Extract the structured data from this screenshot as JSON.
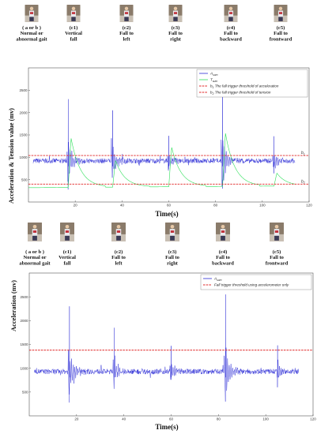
{
  "panel1": {
    "photos": [
      {
        "lines": [
          "( a or b )",
          "Normal or",
          "abnormal gait"
        ]
      },
      {
        "lines": [
          "(c1)",
          "Vertical",
          "fall"
        ]
      },
      {
        "lines": [
          "(c2)",
          "Fall to",
          "left"
        ]
      },
      {
        "lines": [
          "(c3)",
          "Fall to",
          "right"
        ]
      },
      {
        "lines": [
          "(c4)",
          "Fall to",
          "backward"
        ]
      },
      {
        "lines": [
          "(c5)",
          "Fall to",
          "frontward"
        ]
      }
    ]
  },
  "panel2": {
    "photos": [
      {
        "lines": [
          "( a or b )",
          "Normal or",
          "abnormal gait"
        ]
      },
      {
        "lines": [
          "(c1)",
          "Vertical",
          "fall"
        ]
      },
      {
        "lines": [
          "(c2)",
          "Fall to",
          "left"
        ]
      },
      {
        "lines": [
          "(c3)",
          "Fall to",
          "right"
        ]
      },
      {
        "lines": [
          "(c4)",
          "Fall to",
          "backward"
        ]
      },
      {
        "lines": [
          "(c5)",
          "Fall to",
          "frontward"
        ]
      }
    ]
  },
  "colors": {
    "asum": "#2b2bd6",
    "tsum": "#2ee05a",
    "threshold": "#e02424"
  },
  "chart_data": [
    {
      "type": "line",
      "xlabel": "Time(s)",
      "ylabel": "Acceleration & Tension value (mv)",
      "xlim": [
        0,
        120
      ],
      "ylim": [
        0,
        3000
      ],
      "xticks": [
        20,
        40,
        60,
        80,
        100,
        120
      ],
      "yticks": [
        500,
        1000,
        1500,
        2000,
        2500
      ],
      "legend_position": "top-right",
      "series": [
        {
          "name": "A",
          "name_sub": "sum",
          "role": "acceleration",
          "baseline": 920,
          "noise": 55
        },
        {
          "name": "T",
          "name_sub": "sum",
          "role": "tension",
          "baseline": 360
        }
      ],
      "thresholds": [
        {
          "name": "b",
          "name_sub": "1",
          "legend": "The fall trigger threshold of acceleration",
          "value": 1040,
          "label": "b1"
        },
        {
          "name": "b",
          "name_sub": "2",
          "legend": "The fall trigger threshold of tension",
          "value": 400,
          "label": "b2"
        }
      ],
      "events": [
        {
          "t": 17,
          "acc_peak": 2300,
          "acc_min": 280,
          "ten_peak": 1470,
          "label": "Vertical fall"
        },
        {
          "t": 36,
          "acc_peak": 2050,
          "acc_min": 760,
          "ten_peak": 960,
          "label": "Fall to left"
        },
        {
          "t": 60,
          "acc_peak": 1480,
          "acc_min": 740,
          "ten_peak": 1250,
          "label": "Fall to right"
        },
        {
          "t": 83,
          "acc_peak": 2570,
          "acc_min": 300,
          "ten_peak": 1560,
          "label": "Fall to backward"
        },
        {
          "t": 105,
          "acc_peak": 1470,
          "acc_min": 640,
          "ten_peak": 650,
          "label": "Fall to frontward"
        }
      ]
    },
    {
      "type": "line",
      "xlabel": "Time(s)",
      "ylabel": "Acceleration (mv)",
      "xlim": [
        0,
        120
      ],
      "ylim": [
        0,
        3000
      ],
      "xticks": [
        20,
        40,
        60,
        80,
        100,
        120
      ],
      "yticks": [
        500,
        1000,
        1500,
        2000,
        2500
      ],
      "legend_position": "top-right",
      "series": [
        {
          "name": "A",
          "name_sub": "sum",
          "role": "acceleration",
          "baseline": 930,
          "noise": 55
        }
      ],
      "thresholds": [
        {
          "legend": "Fall trigger threshold using accelerometer only",
          "value": 1380
        }
      ],
      "events": [
        {
          "t": 17,
          "acc_peak": 2300,
          "acc_min": 280
        },
        {
          "t": 36,
          "acc_peak": 1850,
          "acc_min": 780
        },
        {
          "t": 60,
          "acc_peak": 1470,
          "acc_min": 760
        },
        {
          "t": 83,
          "acc_peak": 2550,
          "acc_min": 300
        },
        {
          "t": 105,
          "acc_peak": 1480,
          "acc_min": 600
        }
      ]
    }
  ]
}
